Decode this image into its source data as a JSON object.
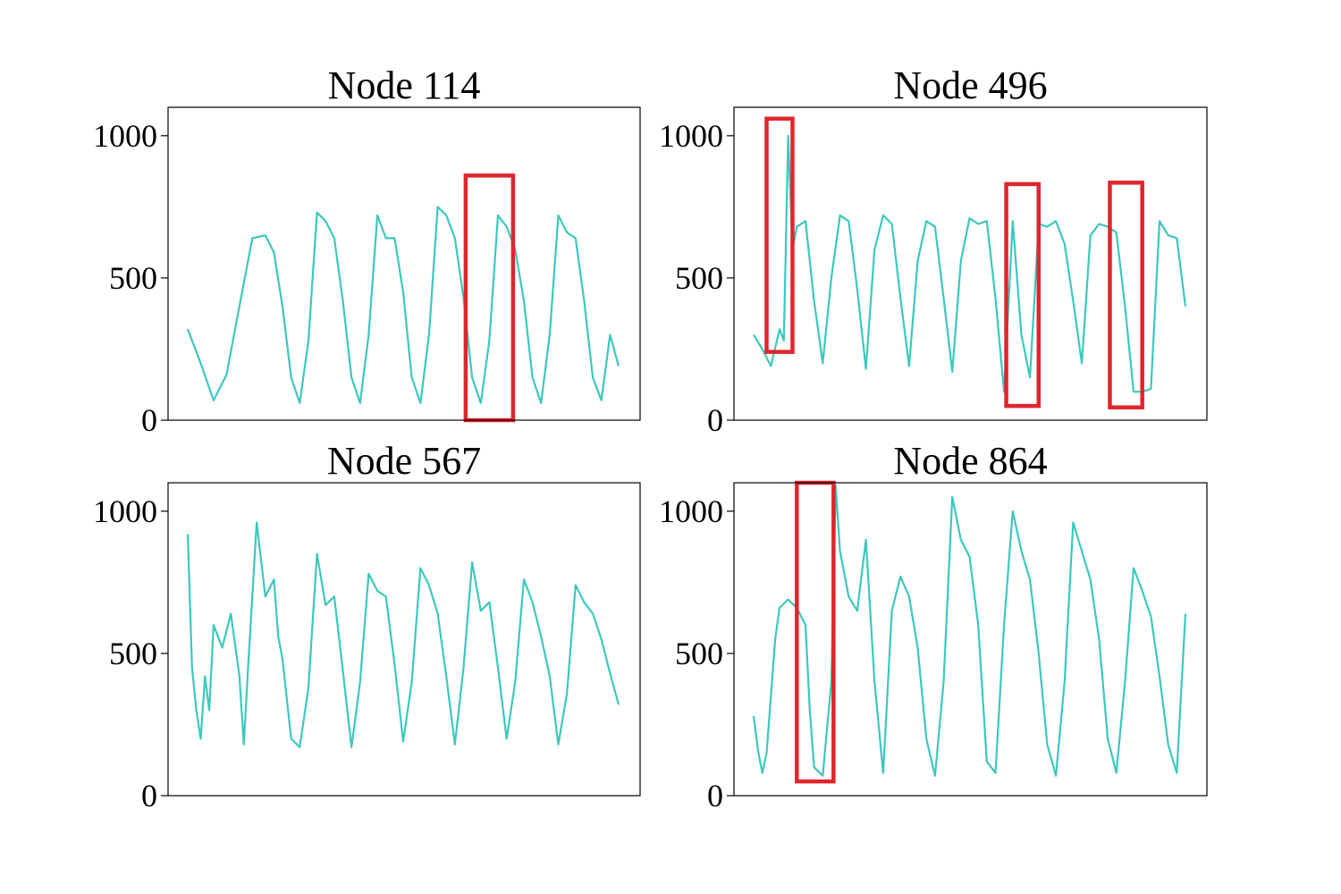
{
  "chart_data": [
    {
      "type": "line",
      "title": "Node 114",
      "ylim": [
        0,
        1100
      ],
      "yticks": [
        0,
        500,
        1000
      ],
      "x_ticks_visible": false,
      "grid": false,
      "color": "#3cc8bd",
      "highlight_color": "#e0252d",
      "series": [
        {
          "x": [
            0,
            3,
            6,
            9,
            12,
            15,
            18,
            20,
            22,
            24,
            26,
            28,
            30,
            32,
            34,
            36,
            38,
            40,
            42,
            44,
            46,
            48,
            50,
            52,
            54,
            56,
            58,
            60,
            62,
            64,
            66,
            68,
            70,
            72,
            74,
            76,
            78,
            80,
            82,
            84,
            86,
            88,
            90,
            92,
            94,
            96,
            98,
            100
          ],
          "values": [
            320,
            200,
            70,
            160,
            400,
            640,
            650,
            590,
            400,
            150,
            60,
            280,
            730,
            700,
            640,
            420,
            150,
            60,
            300,
            720,
            640,
            640,
            450,
            150,
            60,
            300,
            750,
            720,
            640,
            430,
            150,
            60,
            280,
            720,
            680,
            600,
            420,
            150,
            60,
            300,
            720,
            660,
            640,
            420,
            150,
            70,
            300,
            190
          ]
        }
      ],
      "highlights": [
        {
          "x_range": [
            64.5,
            75.5
          ],
          "y_range": [
            0,
            860
          ]
        }
      ]
    },
    {
      "type": "line",
      "title": "Node 496",
      "ylim": [
        0,
        1100
      ],
      "yticks": [
        0,
        500,
        1000
      ],
      "x_ticks_visible": false,
      "grid": false,
      "color": "#3cc8bd",
      "highlight_color": "#e0252d",
      "series": [
        {
          "x": [
            0,
            2,
            4,
            6,
            7,
            8,
            9,
            10,
            12,
            14,
            16,
            18,
            20,
            22,
            24,
            26,
            28,
            30,
            32,
            34,
            36,
            38,
            40,
            42,
            44,
            46,
            48,
            50,
            52,
            54,
            56,
            58,
            60,
            62,
            64,
            66,
            68,
            70,
            72,
            74,
            76,
            78,
            80,
            82,
            84,
            86,
            88,
            90,
            92,
            94,
            96,
            98,
            100
          ],
          "values": [
            300,
            250,
            190,
            320,
            280,
            1000,
            600,
            680,
            700,
            420,
            200,
            500,
            720,
            700,
            460,
            180,
            600,
            720,
            690,
            430,
            190,
            560,
            700,
            680,
            430,
            170,
            560,
            710,
            690,
            700,
            430,
            100,
            700,
            300,
            150,
            690,
            680,
            700,
            620,
            420,
            200,
            650,
            690,
            680,
            660,
            400,
            100,
            100,
            110,
            700,
            650,
            640,
            400
          ]
        }
      ],
      "highlights": [
        {
          "x_range": [
            3.0,
            9.0
          ],
          "y_range": [
            240,
            1060
          ]
        },
        {
          "x_range": [
            58.5,
            66.0
          ],
          "y_range": [
            50,
            830
          ]
        },
        {
          "x_range": [
            82.5,
            90.0
          ],
          "y_range": [
            45,
            835
          ]
        }
      ]
    },
    {
      "type": "line",
      "title": "Node 567",
      "ylim": [
        0,
        1100
      ],
      "yticks": [
        0,
        500,
        1000
      ],
      "x_ticks_visible": false,
      "grid": false,
      "color": "#3cc8bd",
      "highlight_color": "#e0252d",
      "series": [
        {
          "x": [
            0,
            1,
            2,
            3,
            4,
            5,
            6,
            8,
            10,
            12,
            13,
            14,
            16,
            18,
            20,
            21,
            22,
            24,
            26,
            28,
            30,
            32,
            34,
            36,
            38,
            40,
            42,
            44,
            46,
            48,
            50,
            52,
            54,
            56,
            58,
            60,
            62,
            64,
            66,
            68,
            70,
            72,
            74,
            76,
            78,
            80,
            82,
            84,
            86,
            88,
            90,
            92,
            94,
            96,
            98,
            100
          ],
          "values": [
            920,
            450,
            300,
            200,
            420,
            300,
            600,
            520,
            640,
            420,
            180,
            450,
            960,
            700,
            760,
            560,
            480,
            200,
            170,
            380,
            850,
            670,
            700,
            440,
            170,
            400,
            780,
            720,
            700,
            460,
            190,
            400,
            800,
            740,
            640,
            420,
            180,
            450,
            820,
            650,
            680,
            450,
            200,
            400,
            760,
            680,
            560,
            420,
            180,
            360,
            740,
            680,
            640,
            550,
            430,
            320
          ]
        }
      ],
      "highlights": []
    },
    {
      "type": "line",
      "title": "Node 864",
      "ylim": [
        0,
        1100
      ],
      "yticks": [
        0,
        500,
        1000
      ],
      "x_ticks_visible": false,
      "grid": false,
      "color": "#3cc8bd",
      "highlight_color": "#e0252d",
      "series": [
        {
          "x": [
            0,
            1,
            2,
            3,
            4,
            5,
            6,
            8,
            10,
            12,
            13,
            14,
            16,
            18,
            19,
            20,
            22,
            24,
            26,
            28,
            30,
            32,
            34,
            36,
            38,
            40,
            42,
            44,
            46,
            48,
            50,
            52,
            54,
            56,
            58,
            60,
            62,
            64,
            66,
            68,
            70,
            72,
            74,
            76,
            78,
            80,
            82,
            84,
            86,
            88,
            90,
            92,
            94,
            96,
            98,
            100
          ],
          "values": [
            280,
            160,
            80,
            150,
            350,
            550,
            660,
            690,
            660,
            600,
            300,
            100,
            70,
            400,
            1090,
            860,
            700,
            650,
            900,
            400,
            80,
            650,
            770,
            700,
            520,
            200,
            70,
            400,
            1050,
            900,
            840,
            600,
            120,
            80,
            600,
            1000,
            860,
            760,
            500,
            180,
            70,
            400,
            960,
            860,
            760,
            550,
            200,
            80,
            400,
            800,
            720,
            630,
            420,
            180,
            80,
            640
          ]
        }
      ],
      "highlights": [
        {
          "x_range": [
            10.0,
            18.5
          ],
          "y_range": [
            50,
            1100
          ]
        }
      ]
    }
  ]
}
